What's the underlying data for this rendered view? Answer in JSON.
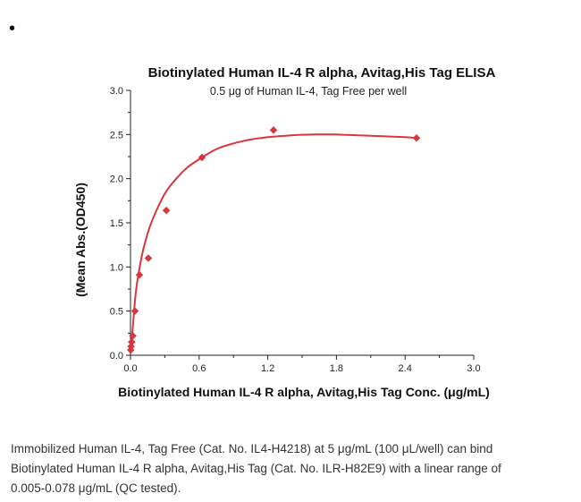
{
  "marker": "•",
  "chart_data": {
    "type": "scatter",
    "title": "Biotinylated Human IL-4 R alpha, Avitag,His Tag ELISA",
    "subtitle": "0.5 μg of Human IL-4, Tag Free per well",
    "xlabel": "Biotinylated Human IL-4 R alpha, Avitag,His Tag Conc. (μg/mL)",
    "ylabel": "(Mean Abs.(OD450)",
    "xlim": [
      0,
      3.0
    ],
    "ylim": [
      0,
      3.0
    ],
    "xticks": [
      "0.0",
      "0.6",
      "1.2",
      "1.8",
      "2.4",
      "3.0"
    ],
    "xtick_values": [
      0,
      0.6,
      1.2,
      1.8,
      2.4,
      3.0
    ],
    "yticks": [
      "0.0",
      "0.5",
      "1.0",
      "1.5",
      "2.0",
      "2.5",
      "3.0"
    ],
    "ytick_values": [
      0,
      0.5,
      1.0,
      1.5,
      2.0,
      2.5,
      3.0
    ],
    "color": "#d9363e",
    "series": [
      {
        "x": [
          0.002,
          0.005,
          0.01,
          0.02,
          0.039,
          0.078,
          0.156,
          0.313,
          0.625,
          1.25,
          2.5
        ],
        "y": [
          0.06,
          0.1,
          0.15,
          0.22,
          0.5,
          0.91,
          1.1,
          1.64,
          2.24,
          2.55,
          2.46
        ]
      }
    ],
    "fit_curve": {
      "x": [
        0,
        0.02,
        0.05,
        0.1,
        0.15,
        0.2,
        0.3,
        0.4,
        0.5,
        0.6,
        0.7,
        0.8,
        1.0,
        1.2,
        1.4,
        1.6,
        1.8,
        2.0,
        2.2,
        2.4,
        2.5
      ],
      "y": [
        0.02,
        0.32,
        0.75,
        1.13,
        1.38,
        1.56,
        1.83,
        2.0,
        2.13,
        2.22,
        2.3,
        2.36,
        2.43,
        2.47,
        2.49,
        2.5,
        2.5,
        2.49,
        2.48,
        2.47,
        2.46
      ]
    }
  },
  "caption": {
    "line1": "Immobilized Human IL-4, Tag Free (Cat. No. IL4-H4218) at 5 μg/mL (100 μL/well) can bind",
    "line2": "Biotinylated Human IL-4 R alpha, Avitag,His Tag (Cat. No. ILR-H82E9) with a linear range of",
    "line3": "0.005-0.078 μg/mL (QC tested)."
  }
}
